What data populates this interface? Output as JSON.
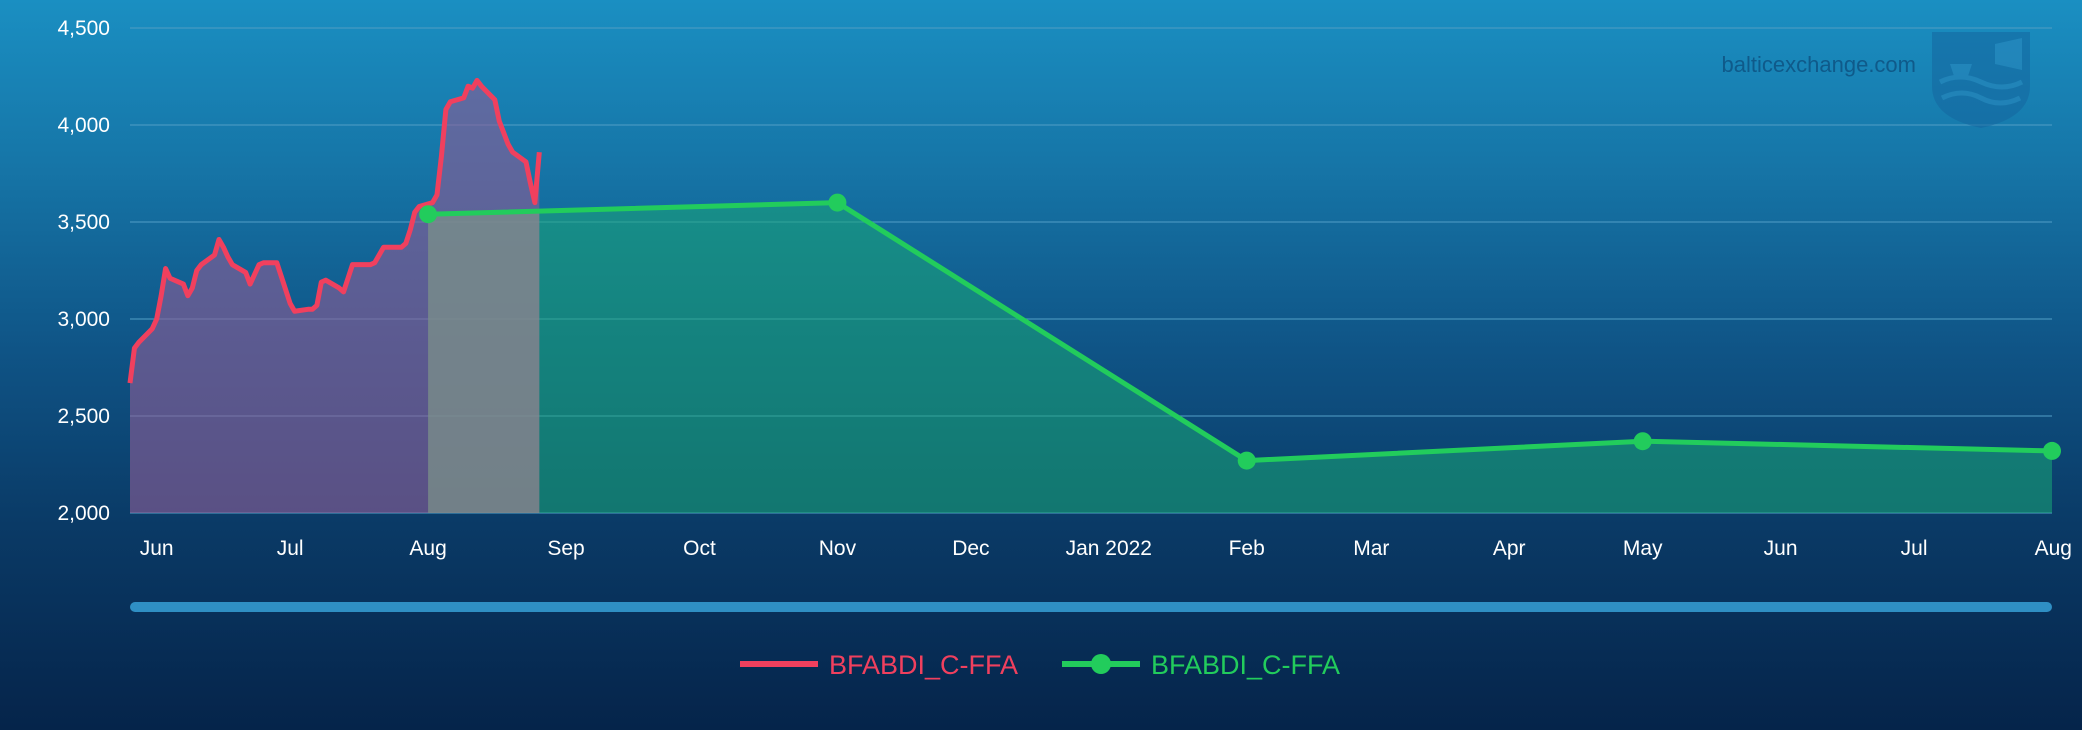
{
  "watermark": {
    "text": "balticexchange.com",
    "logo_icon": "baltic-exchange-shield-logo"
  },
  "colors": {
    "spot_line": "#f0405e",
    "spot_fill": "#8a5e96",
    "ffa_line": "#22cc5c",
    "ffa_fill": "#1aa876",
    "grid": "#4f9cc4",
    "axis_text": "#ffffff",
    "scrollbar": "#2f8fc4"
  },
  "legend": {
    "items": [
      {
        "label": "BFABDI_C-FFA",
        "icon": "line-icon",
        "color": "#f0405e"
      },
      {
        "label": "BFABDI_C-FFA",
        "icon": "line-with-dot-icon",
        "color": "#22cc5c"
      }
    ],
    "placement": "bottom-center"
  },
  "chart_data": {
    "type": "line",
    "title": "",
    "xlabel": "",
    "ylabel": "",
    "ylim": [
      2000,
      4500
    ],
    "xlim": [
      "2021-05-26",
      "2022-08-01"
    ],
    "grid": true,
    "yticks": [
      2000,
      2500,
      3000,
      3500,
      4000,
      4500
    ],
    "ytick_labels": [
      "2,000",
      "2,500",
      "3,000",
      "3,500",
      "4,000",
      "4,500"
    ],
    "xticks": [
      {
        "date": "2021-06-01",
        "label": "Jun"
      },
      {
        "date": "2021-07-01",
        "label": "Jul"
      },
      {
        "date": "2021-08-01",
        "label": "Aug"
      },
      {
        "date": "2021-09-01",
        "label": "Sep"
      },
      {
        "date": "2021-10-01",
        "label": "Oct"
      },
      {
        "date": "2021-11-01",
        "label": "Nov"
      },
      {
        "date": "2021-12-01",
        "label": "Dec"
      },
      {
        "date": "2022-01-01",
        "label": "Jan 2022"
      },
      {
        "date": "2022-02-01",
        "label": "Feb"
      },
      {
        "date": "2022-03-01",
        "label": "Mar"
      },
      {
        "date": "2022-04-01",
        "label": "Apr"
      },
      {
        "date": "2022-05-01",
        "label": "May"
      },
      {
        "date": "2022-06-01",
        "label": "Jun"
      },
      {
        "date": "2022-07-01",
        "label": "Jul"
      },
      {
        "date": "2022-08-01",
        "label": "Aug"
      }
    ],
    "series": [
      {
        "name": "BFABDI_C-FFA",
        "style": "line-area",
        "x": [
          "2021-05-26",
          "2021-05-27",
          "2021-05-28",
          "2021-05-31",
          "2021-06-01",
          "2021-06-02",
          "2021-06-03",
          "2021-06-04",
          "2021-06-07",
          "2021-06-08",
          "2021-06-09",
          "2021-06-10",
          "2021-06-11",
          "2021-06-14",
          "2021-06-15",
          "2021-06-16",
          "2021-06-17",
          "2021-06-18",
          "2021-06-21",
          "2021-06-22",
          "2021-06-23",
          "2021-06-24",
          "2021-06-25",
          "2021-06-28",
          "2021-06-29",
          "2021-06-30",
          "2021-07-01",
          "2021-07-02",
          "2021-07-05",
          "2021-07-06",
          "2021-07-07",
          "2021-07-08",
          "2021-07-09",
          "2021-07-12",
          "2021-07-13",
          "2021-07-14",
          "2021-07-15",
          "2021-07-16",
          "2021-07-19",
          "2021-07-20",
          "2021-07-21",
          "2021-07-22",
          "2021-07-23",
          "2021-07-26",
          "2021-07-27",
          "2021-07-28",
          "2021-07-29",
          "2021-07-30",
          "2021-08-02",
          "2021-08-03",
          "2021-08-04",
          "2021-08-05",
          "2021-08-06",
          "2021-08-09",
          "2021-08-10",
          "2021-08-11",
          "2021-08-12",
          "2021-08-13",
          "2021-08-16",
          "2021-08-17",
          "2021-08-18",
          "2021-08-19",
          "2021-08-20",
          "2021-08-23",
          "2021-08-24",
          "2021-08-25",
          "2021-08-26"
        ],
        "values": [
          2670,
          2850,
          2880,
          2950,
          3000,
          3120,
          3260,
          3210,
          3180,
          3120,
          3160,
          3250,
          3280,
          3330,
          3410,
          3370,
          3320,
          3280,
          3240,
          3180,
          3230,
          3280,
          3290,
          3290,
          3220,
          3150,
          3080,
          3040,
          3050,
          3050,
          3070,
          3190,
          3200,
          3160,
          3140,
          3210,
          3280,
          3280,
          3280,
          3290,
          3330,
          3370,
          3370,
          3370,
          3390,
          3460,
          3550,
          3580,
          3600,
          3640,
          3840,
          4080,
          4120,
          4140,
          4200,
          4190,
          4230,
          4200,
          4130,
          4020,
          3960,
          3900,
          3860,
          3810,
          3700,
          3600,
          3860
        ]
      },
      {
        "name": "BFABDI_C-FFA",
        "style": "line-markers-area",
        "x": [
          "2021-08-01",
          "2021-11-01",
          "2022-02-01",
          "2022-05-01",
          "2022-08-01"
        ],
        "values": [
          3540,
          3600,
          2270,
          2370,
          2320
        ]
      }
    ],
    "highlight_band": {
      "from": "2021-08-01",
      "to": "2021-08-26"
    }
  }
}
